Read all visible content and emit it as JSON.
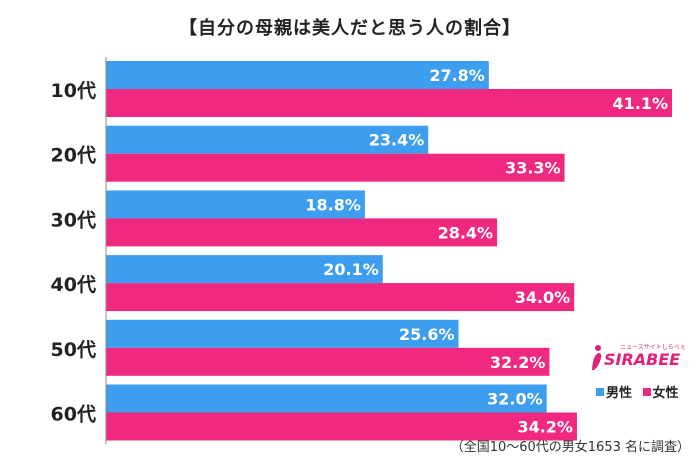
{
  "title": "【自分の母親は美人だと思う人の割合】",
  "footnote": "（全国10～60代の男女1653 名に調査）",
  "brand": {
    "name": "SIRABEE",
    "tagline": "ニュースサイトしらべぇ"
  },
  "colors": {
    "male": "#3d9ef0",
    "female": "#f0287f"
  },
  "chart_data": {
    "type": "bar",
    "orientation": "horizontal",
    "categories": [
      "10代",
      "20代",
      "30代",
      "40代",
      "50代",
      "60代"
    ],
    "series": [
      {
        "name": "男性",
        "values": [
          27.8,
          23.4,
          18.8,
          20.1,
          25.6,
          32.0
        ],
        "labels": [
          "27.8%",
          "23.4%",
          "18.8%",
          "20.1%",
          "25.6%",
          "32.0%"
        ]
      },
      {
        "name": "女性",
        "values": [
          41.1,
          33.3,
          28.4,
          34.0,
          32.2,
          34.2
        ],
        "labels": [
          "41.1%",
          "33.3%",
          "28.4%",
          "34.0%",
          "32.2%",
          "34.2%"
        ]
      }
    ],
    "xlim": [
      0,
      41.1
    ],
    "legend_position": "bottom-right",
    "grid": false
  }
}
